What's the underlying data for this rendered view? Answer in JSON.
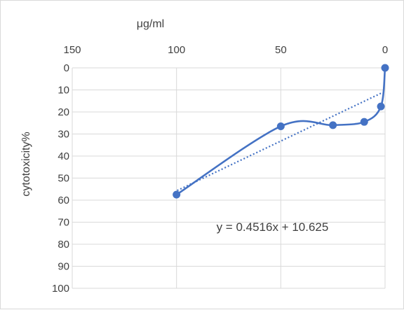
{
  "chart_data": {
    "type": "scatter",
    "title": "",
    "xlabel": "μg/ml",
    "ylabel": "cytotoxicity%",
    "x_axis_position": "top",
    "y_axis_reversed": true,
    "image_mirrored_horizontally": true,
    "xlim": [
      0,
      150
    ],
    "ylim": [
      0,
      100
    ],
    "x_ticks": [
      0,
      50,
      100,
      150
    ],
    "y_ticks": [
      0,
      10,
      20,
      30,
      40,
      50,
      60,
      70,
      80,
      90,
      100
    ],
    "x_tick_labels": [
      "0",
      "50",
      "100",
      "150"
    ],
    "y_tick_labels": [
      "0",
      "10",
      "20",
      "30",
      "40",
      "50",
      "60",
      "70",
      "80",
      "90",
      "100"
    ],
    "grid": true,
    "series": [
      {
        "color": "#4472c4",
        "marker": "circle",
        "line": "smoothed",
        "x": [
          0,
          2,
          10,
          25,
          50,
          100
        ],
        "y": [
          0,
          17.5,
          24.5,
          26,
          26.5,
          57.5
        ]
      }
    ],
    "trendline": {
      "type": "linear",
      "style": "dotted",
      "color": "#4472c4",
      "slope": 0.4516,
      "intercept": 10.625,
      "equation_text": "y = 0.4516x + 10.625"
    }
  }
}
